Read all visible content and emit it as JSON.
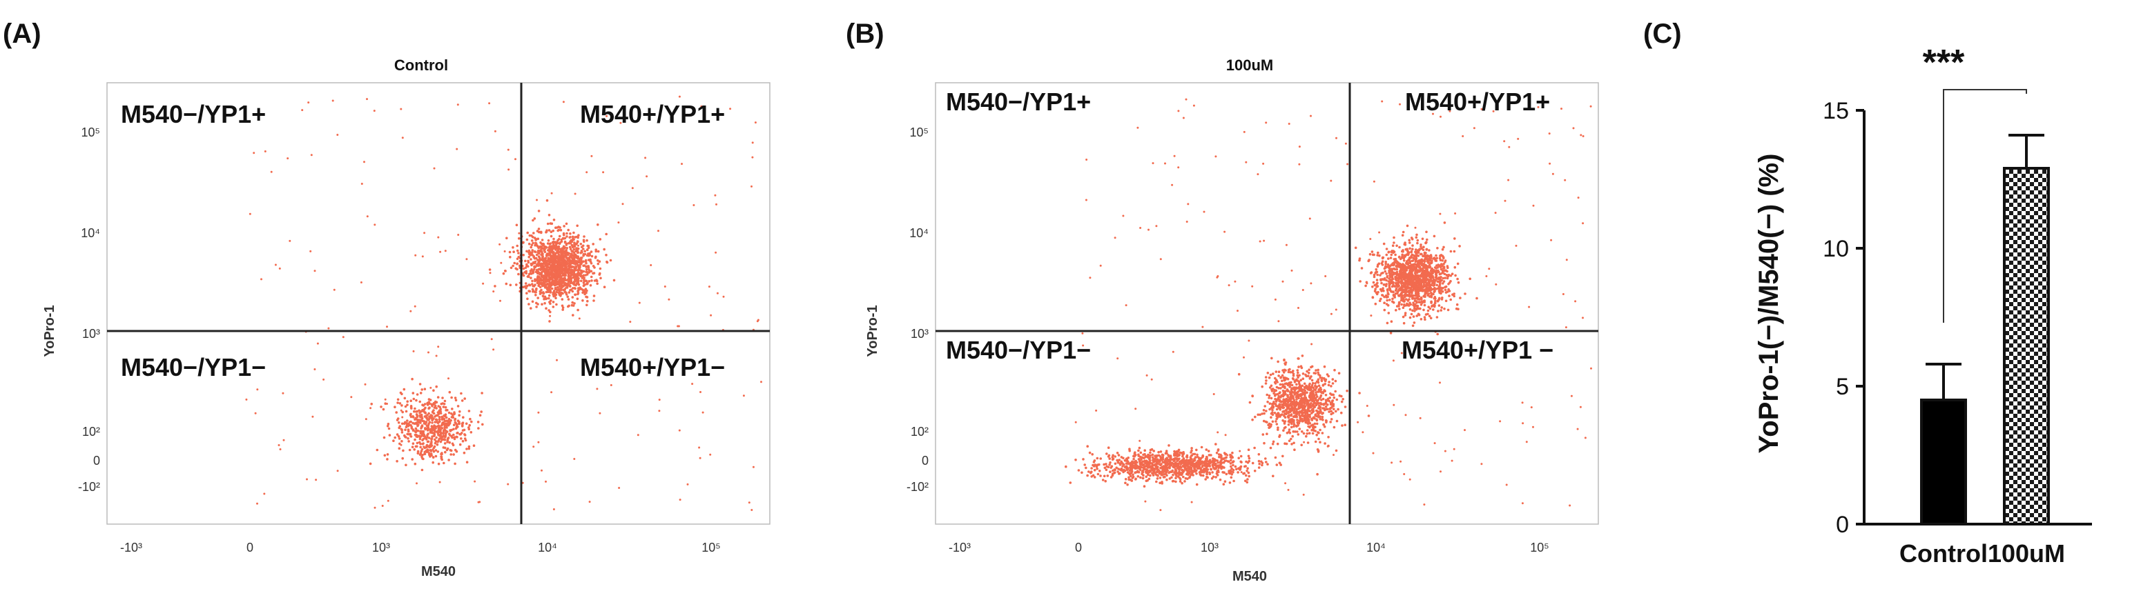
{
  "chart_data": [
    {
      "panel": "(A)",
      "type": "scatter",
      "title": "Control",
      "xlabel": "M540",
      "ylabel": "YoPro-1",
      "x_ticks": [
        "-10³",
        "0",
        "10³",
        "10⁴",
        "10⁵"
      ],
      "y_ticks": [
        "10⁵",
        "10⁴",
        "10³",
        "10²",
        "0",
        "-10²"
      ],
      "gate_x": 6500,
      "gate_y": 1000,
      "quadrants": {
        "top_left": "M540−/YP1+",
        "top_right": "M540+/YP1+",
        "bottom_left": "M540−/YP1−",
        "bottom_right": "M540+/YP1−"
      },
      "clusters": [
        {
          "center_x": 11500,
          "center_y": 4500,
          "count": 1400
        },
        {
          "center_x": 2000,
          "center_y": 110,
          "count": 600
        }
      ],
      "point_color": "#f26b4f"
    },
    {
      "panel": "(B)",
      "type": "scatter",
      "title": "100uM",
      "xlabel": "M540",
      "ylabel": "YoPro-1",
      "x_ticks": [
        "-10³",
        "0",
        "10³",
        "10⁴",
        "10⁵"
      ],
      "y_ticks": [
        "10⁵",
        "10⁴",
        "10³",
        "10²",
        "0",
        "-10²"
      ],
      "gate_x": 6500,
      "gate_y": 1000,
      "quadrants": {
        "top_left": "M540−/YP1+",
        "top_right": "M540+/YP1+",
        "bottom_left": "M540−/YP1−",
        "bottom_right": "M540+/YP1 −"
      },
      "clusters": [
        {
          "center_x": 17000,
          "center_y": 3500,
          "count": 1300
        },
        {
          "center_x": 3500,
          "center_y": 200,
          "count": 900
        },
        {
          "center_x": 150,
          "center_y": 0,
          "count": 1000
        }
      ],
      "point_color": "#f26b4f"
    },
    {
      "panel": "(C)",
      "type": "bar",
      "categories": [
        "Control",
        "100uM"
      ],
      "values": [
        4.5,
        12.9
      ],
      "errors": [
        1.3,
        1.2
      ],
      "ylabel": "YoPro-1(−)/M540(−) (%)",
      "ylim": [
        0,
        15
      ],
      "yticks": [
        "0",
        "5",
        "10",
        "15"
      ],
      "significance": "***",
      "bar_colors": [
        "#000000",
        "checkered"
      ]
    }
  ]
}
